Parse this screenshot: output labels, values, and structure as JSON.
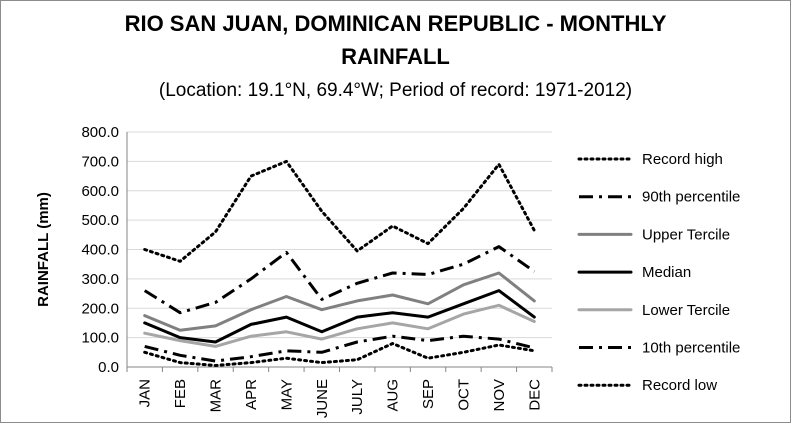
{
  "chart_data": {
    "type": "line",
    "title_line1": "RIO SAN JUAN, DOMINICAN REPUBLIC - MONTHLY",
    "title_line2": "RAINFALL",
    "subtitle": "(Location: 19.1°N, 69.4°W; Period of record: 1971-2012)",
    "xlabel": "",
    "ylabel": "RAINFALL (mm)",
    "ylim": [
      0,
      800
    ],
    "yticks": [
      "0.0",
      "100.0",
      "200.0",
      "300.0",
      "400.0",
      "500.0",
      "600.0",
      "700.0",
      "800.0"
    ],
    "categories": [
      "JAN",
      "FEB",
      "MAR",
      "APR",
      "MAY",
      "JUNE",
      "JULY",
      "AUG",
      "SEP",
      "OCT",
      "NOV",
      "DEC"
    ],
    "grid": "horizontal",
    "legend_position": "right",
    "series": [
      {
        "name": "Record high",
        "color": "#000000",
        "style": "dotted",
        "values": [
          400,
          360,
          460,
          650,
          700,
          530,
          395,
          480,
          420,
          540,
          690,
          465
        ]
      },
      {
        "name": "90th percentile",
        "color": "#000000",
        "style": "dashdot",
        "values": [
          260,
          185,
          220,
          300,
          390,
          230,
          285,
          320,
          315,
          350,
          410,
          325
        ]
      },
      {
        "name": "Upper Tercile",
        "color": "#808080",
        "style": "solid",
        "values": [
          175,
          125,
          140,
          195,
          240,
          195,
          225,
          245,
          215,
          280,
          320,
          225
        ]
      },
      {
        "name": "Median",
        "color": "#000000",
        "style": "solid",
        "values": [
          150,
          100,
          85,
          145,
          170,
          120,
          170,
          185,
          170,
          215,
          260,
          170
        ]
      },
      {
        "name": "Lower Tercile",
        "color": "#a6a6a6",
        "style": "solid",
        "values": [
          115,
          90,
          70,
          105,
          120,
          95,
          130,
          150,
          130,
          180,
          210,
          155
        ]
      },
      {
        "name": "10th percentile",
        "color": "#000000",
        "style": "dashdot",
        "values": [
          70,
          40,
          20,
          35,
          55,
          50,
          85,
          105,
          90,
          105,
          95,
          65
        ]
      },
      {
        "name": "Record low",
        "color": "#000000",
        "style": "dotted",
        "values": [
          50,
          15,
          5,
          15,
          30,
          15,
          25,
          80,
          30,
          50,
          75,
          55
        ]
      }
    ]
  }
}
